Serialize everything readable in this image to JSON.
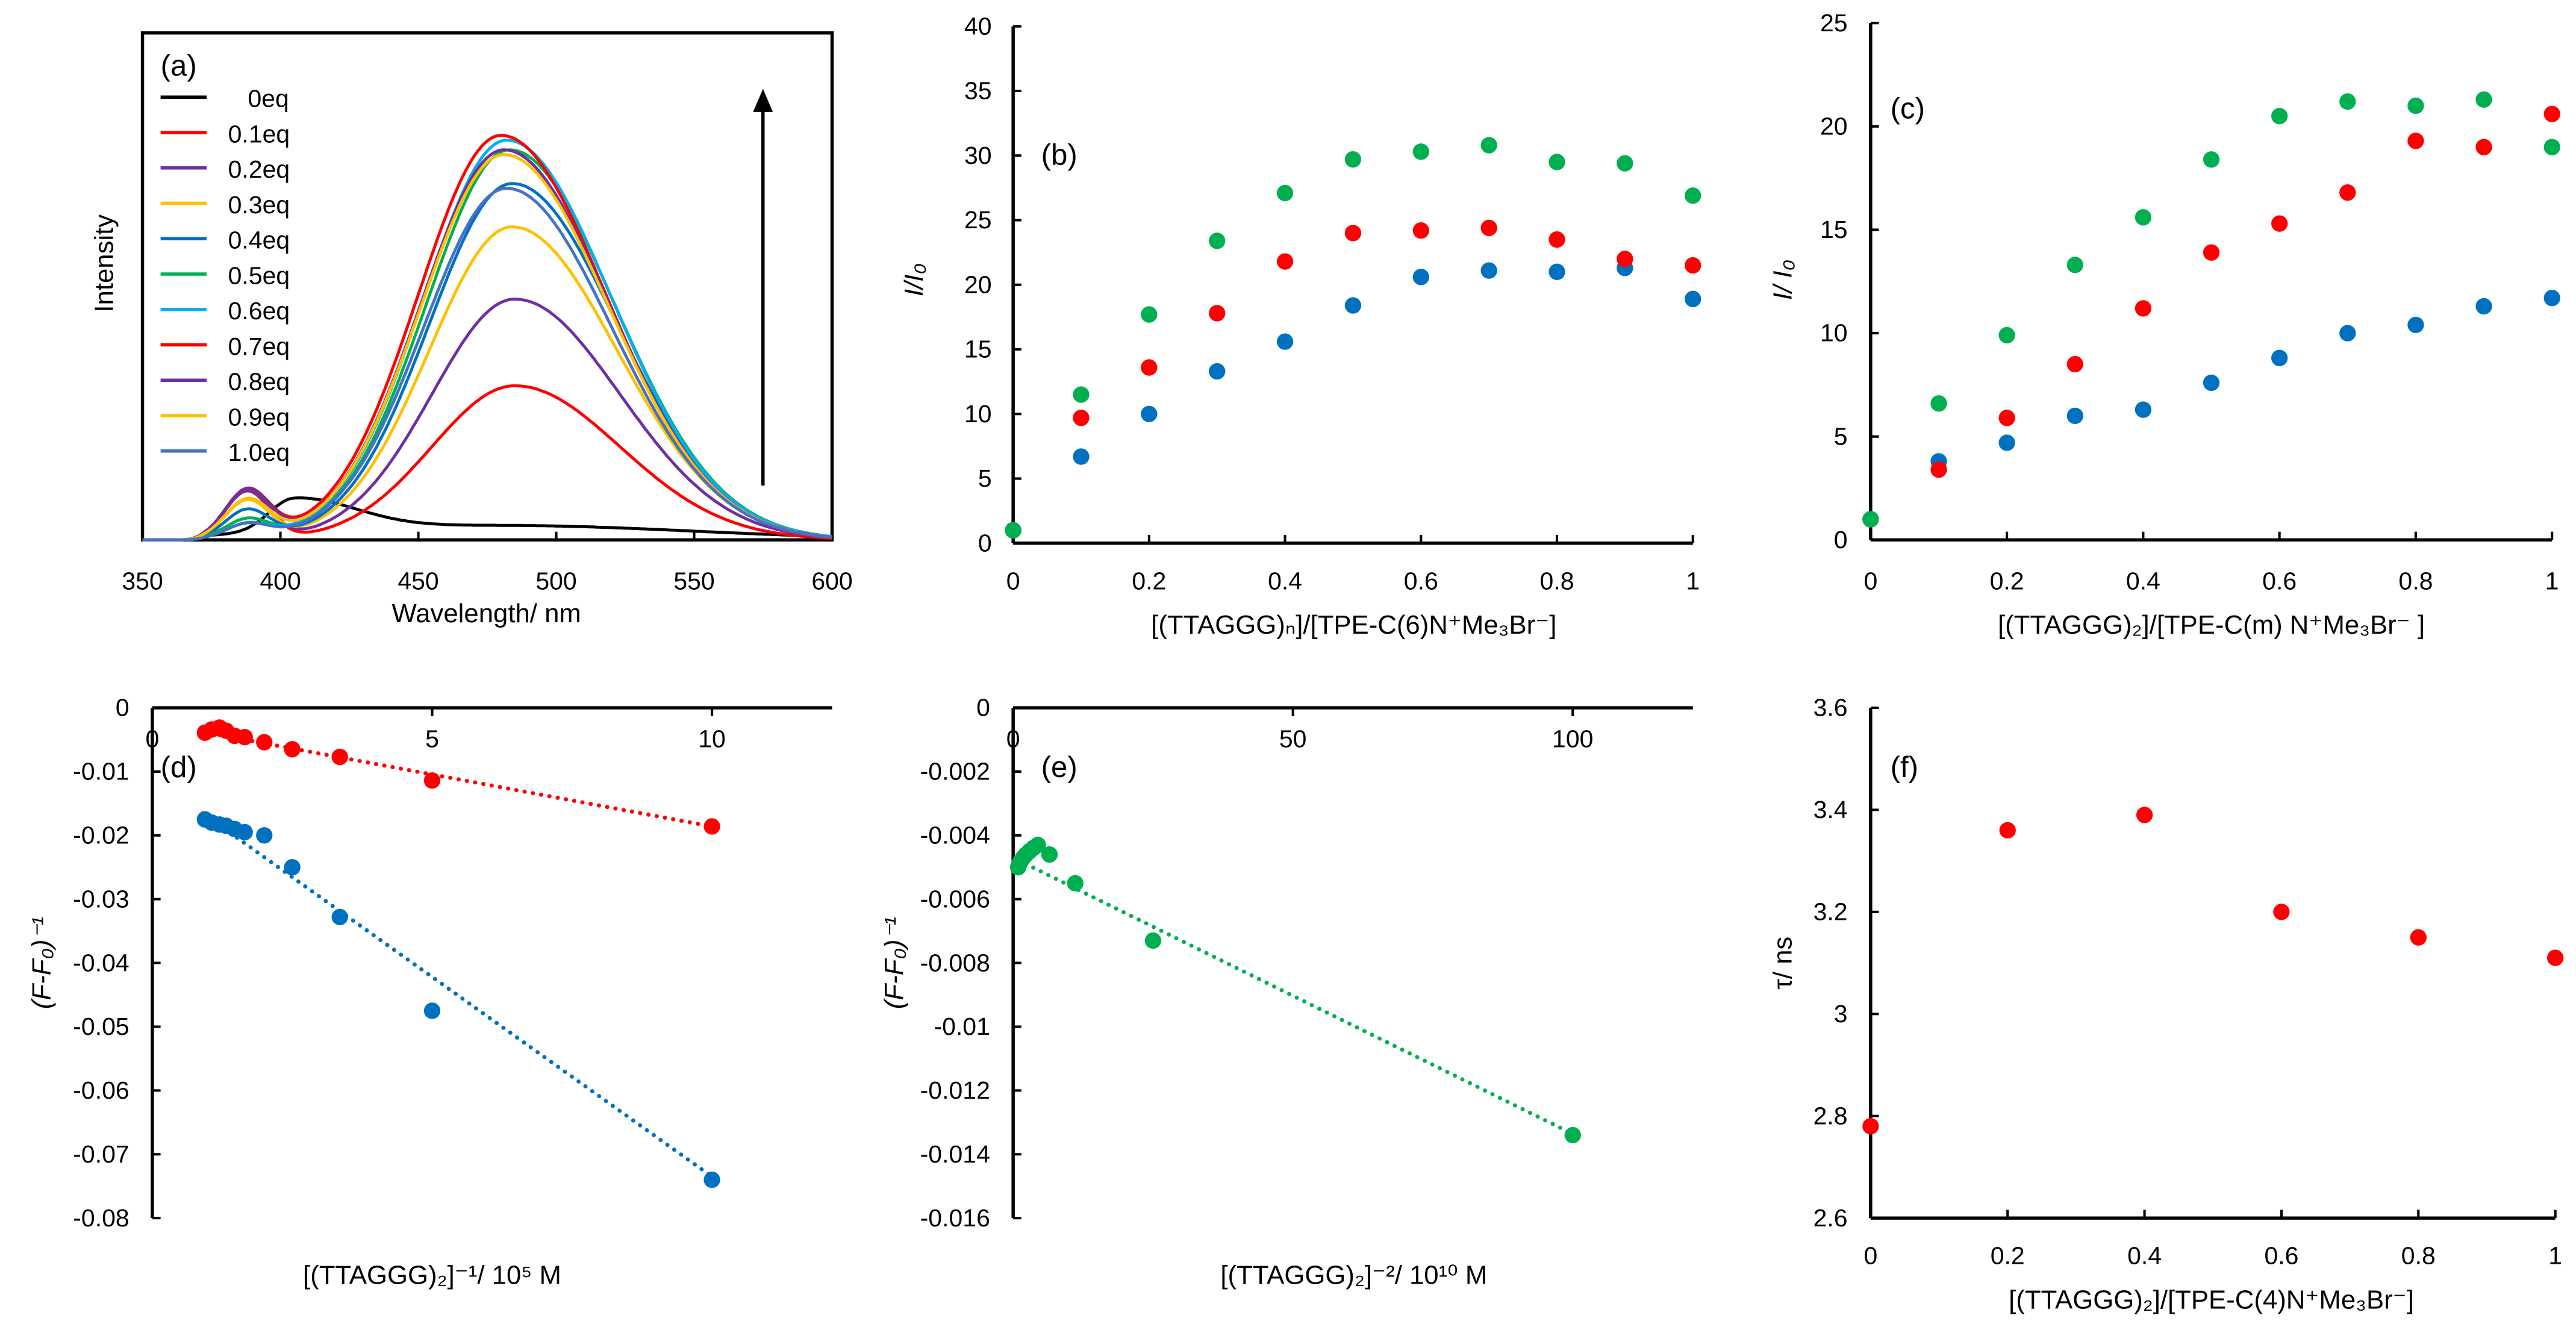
{
  "colors": {
    "red": "#ff0000",
    "blue": "#0070c0",
    "green": "#00b050",
    "black": "#000000"
  },
  "chart_data": [
    {
      "id": "a",
      "panel_label": "(a)",
      "type": "line",
      "xlabel": "Wavelength/ nm",
      "ylabel": "Intensity",
      "xlim": [
        350,
        600
      ],
      "xticks": [
        "350",
        "400",
        "450",
        "500",
        "550",
        "600"
      ],
      "ylim": [
        0,
        1
      ],
      "arrow": "increasing intensity (up)",
      "series": [
        {
          "name": "0eq",
          "color": "#000000",
          "peak_nm": 405,
          "peak_intensity": 0.1,
          "shoulder": 0
        },
        {
          "name": "0.1eq",
          "color": "#ff0000",
          "peak_nm": 485,
          "peak_intensity": 0.32,
          "shoulder": 0.1
        },
        {
          "name": "0.2eq",
          "color": "#7030a0",
          "peak_nm": 485,
          "peak_intensity": 0.5,
          "shoulder": 0.1
        },
        {
          "name": "0.3eq",
          "color": "#ffc000",
          "peak_nm": 484,
          "peak_intensity": 0.65,
          "shoulder": 0.08
        },
        {
          "name": "0.4eq",
          "color": "#0070c0",
          "peak_nm": 484,
          "peak_intensity": 0.74,
          "shoulder": 0.06
        },
        {
          "name": "0.5eq",
          "color": "#00b050",
          "peak_nm": 483,
          "peak_intensity": 0.81,
          "shoulder": 0.04
        },
        {
          "name": "0.6eq",
          "color": "#00b0f0",
          "peak_nm": 482,
          "peak_intensity": 0.83,
          "shoulder": 0.03
        },
        {
          "name": "0.7eq",
          "color": "#ff0000",
          "peak_nm": 480,
          "peak_intensity": 0.84,
          "shoulder": 0.1
        },
        {
          "name": "0.8eq",
          "color": "#7030a0",
          "peak_nm": 481,
          "peak_intensity": 0.81,
          "shoulder": 0.1
        },
        {
          "name": "0.9eq",
          "color": "#ffc000",
          "peak_nm": 481,
          "peak_intensity": 0.8,
          "shoulder": 0.08
        },
        {
          "name": "1.0eq",
          "color": "#4472c4",
          "peak_nm": 482,
          "peak_intensity": 0.73,
          "shoulder": 0.03
        }
      ]
    },
    {
      "id": "b",
      "panel_label": "(b)",
      "type": "scatter",
      "xlabel": "[(TTAGGG)ₙ]/[TPE-C(6)N⁺Me₃Br⁻]",
      "ylabel": "I/I₀",
      "xlim": [
        0,
        1
      ],
      "ylim": [
        0,
        40
      ],
      "xticks": [
        "0",
        "0.2",
        "0.4",
        "0.6",
        "0.8",
        "1"
      ],
      "yticks": [
        "0",
        "5",
        "10",
        "15",
        "20",
        "25",
        "30",
        "35",
        "40"
      ],
      "x": [
        0,
        0.1,
        0.2,
        0.3,
        0.4,
        0.5,
        0.6,
        0.7,
        0.8,
        0.9,
        1.0
      ],
      "series": [
        {
          "name": "blue",
          "color": "#0070c0",
          "values": [
            1.0,
            6.7,
            10.0,
            13.3,
            15.6,
            18.4,
            20.6,
            21.1,
            21.0,
            21.3,
            18.9
          ]
        },
        {
          "name": "red",
          "color": "#ff0000",
          "values": [
            1.0,
            9.7,
            13.6,
            17.8,
            21.8,
            24.0,
            24.2,
            24.4,
            23.5,
            22.0,
            21.5
          ]
        },
        {
          "name": "green",
          "color": "#00b050",
          "values": [
            1.0,
            11.5,
            17.7,
            23.4,
            27.1,
            29.7,
            30.3,
            30.8,
            29.5,
            29.4,
            26.9
          ]
        }
      ]
    },
    {
      "id": "c",
      "panel_label": "(c)",
      "type": "scatter",
      "xlabel": "[(TTAGGG)₂]/[TPE-C(m) N⁺Me₃Br⁻ ]",
      "ylabel": "I/ I₀",
      "xlim": [
        0,
        1
      ],
      "ylim": [
        0,
        25
      ],
      "xticks": [
        "0",
        "0.2",
        "0.4",
        "0.6",
        "0.8",
        "1"
      ],
      "yticks": [
        "0",
        "5",
        "10",
        "15",
        "20",
        "25"
      ],
      "x": [
        0,
        0.1,
        0.2,
        0.3,
        0.4,
        0.5,
        0.6,
        0.7,
        0.8,
        0.9,
        1.0
      ],
      "series": [
        {
          "name": "blue",
          "color": "#0070c0",
          "values": [
            1.0,
            3.8,
            4.7,
            6.0,
            6.3,
            7.6,
            8.8,
            10.0,
            10.4,
            11.3,
            11.7
          ]
        },
        {
          "name": "red",
          "color": "#ff0000",
          "values": [
            1.0,
            3.4,
            5.9,
            8.5,
            11.2,
            13.9,
            15.3,
            16.8,
            19.3,
            19.0,
            20.6
          ]
        },
        {
          "name": "green",
          "color": "#00b050",
          "values": [
            1.0,
            6.6,
            9.9,
            13.3,
            15.6,
            18.4,
            20.5,
            21.2,
            21.0,
            21.3,
            19.0
          ]
        }
      ]
    },
    {
      "id": "d",
      "panel_label": "(d)",
      "type": "scatter",
      "xlabel": "[(TTAGGG)₂]⁻¹/ 10⁵ M",
      "ylabel": "(F-F₀)⁻¹",
      "xlim": [
        0,
        10
      ],
      "ylim": [
        -0.08,
        0
      ],
      "xticks": [
        "0",
        "5",
        "10"
      ],
      "yticks": [
        "0",
        "-0.01",
        "-0.02",
        "-0.03",
        "-0.04",
        "-0.05",
        "-0.06",
        "-0.07",
        "-0.08"
      ],
      "x": [
        0.94,
        1.06,
        1.2,
        1.32,
        1.47,
        1.65,
        2.0,
        2.5,
        3.35,
        5.0,
        10.0
      ],
      "series": [
        {
          "name": "red",
          "color": "#ff0000",
          "values": [
            -0.0039,
            -0.0034,
            -0.0031,
            -0.0036,
            -0.0044,
            -0.0046,
            -0.0054,
            -0.0065,
            -0.0077,
            -0.0114,
            -0.0186
          ],
          "fit": {
            "slope": -0.00163,
            "intercept": -0.0023,
            "x": [
              0.9,
              10
            ]
          }
        },
        {
          "name": "blue",
          "color": "#0070c0",
          "values": [
            -0.0175,
            -0.018,
            -0.0183,
            -0.0185,
            -0.019,
            -0.0195,
            -0.02,
            -0.025,
            -0.0328,
            -0.0475,
            -0.074
          ],
          "fit": {
            "slope": -0.00626,
            "intercept": -0.0109,
            "x": [
              0.9,
              10
            ]
          }
        }
      ]
    },
    {
      "id": "e",
      "panel_label": "(e)",
      "type": "scatter",
      "xlabel": "[(TTAGGG)₂]⁻²/ 10¹⁰ M",
      "ylabel": "(F-F₀)⁻¹",
      "xlim": [
        0,
        100
      ],
      "ylim": [
        -0.016,
        0
      ],
      "xticks": [
        "0",
        "50",
        "100"
      ],
      "yticks": [
        "0",
        "-0.002",
        "-0.004",
        "-0.006",
        "-0.008",
        "-0.01",
        "-0.012",
        "-0.014",
        "-0.016"
      ],
      "x": [
        0.9,
        1.1,
        1.4,
        1.8,
        2.3,
        2.9,
        3.6,
        4.4,
        6.5,
        11.1,
        25,
        100
      ],
      "series": [
        {
          "name": "green",
          "color": "#00b050",
          "values": [
            -0.005,
            -0.0049,
            -0.0048,
            -0.0047,
            -0.0046,
            -0.0045,
            -0.0044,
            -0.0043,
            -0.0046,
            -0.0055,
            -0.0073,
            -0.0134
          ],
          "fit": {
            "slope": -8.66e-05,
            "intercept": -0.0047,
            "x": [
              0.9,
              100
            ]
          }
        }
      ]
    },
    {
      "id": "f",
      "panel_label": "(f)",
      "type": "scatter",
      "xlabel": "[(TTAGGG)₂]/[TPE-C(4)N⁺Me₃Br⁻]",
      "ylabel": "τ/ ns",
      "xlim": [
        0,
        1
      ],
      "ylim": [
        2.6,
        3.6
      ],
      "xticks": [
        "0",
        "0.2",
        "0.4",
        "0.6",
        "0.8",
        "1"
      ],
      "yticks": [
        "2.6",
        "2.8",
        "3",
        "3.2",
        "3.4",
        "3.6"
      ],
      "x": [
        0,
        0.2,
        0.4,
        0.6,
        0.8,
        1.0
      ],
      "series": [
        {
          "name": "red",
          "color": "#ff0000",
          "values": [
            2.78,
            3.36,
            3.39,
            3.2,
            3.15,
            3.11
          ]
        }
      ]
    }
  ]
}
